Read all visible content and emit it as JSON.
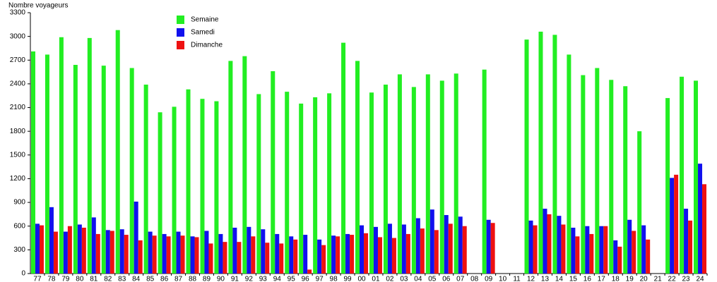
{
  "chart_data": {
    "type": "bar",
    "y_label": "Nombre voyageurs",
    "categories": [
      "77",
      "78",
      "79",
      "80",
      "81",
      "82",
      "83",
      "84",
      "85",
      "86",
      "87",
      "88",
      "89",
      "90",
      "91",
      "92",
      "93",
      "94",
      "95",
      "96",
      "97",
      "98",
      "99",
      "00",
      "01",
      "02",
      "03",
      "04",
      "05",
      "06",
      "07",
      "08",
      "09",
      "10",
      "11",
      "12",
      "13",
      "14",
      "15",
      "16",
      "17",
      "18",
      "19",
      "20",
      "21",
      "22",
      "23",
      "24"
    ],
    "series": [
      {
        "name": "Semaine",
        "color": "#22ee22",
        "values": [
          2810,
          2770,
          2990,
          2640,
          2980,
          2630,
          3080,
          2600,
          2390,
          2040,
          2110,
          2330,
          2210,
          2180,
          2690,
          2750,
          2270,
          2560,
          2300,
          2150,
          2230,
          2280,
          2920,
          2690,
          2290,
          2390,
          2520,
          2360,
          2520,
          2440,
          2530,
          null,
          2580,
          null,
          null,
          2960,
          3060,
          3020,
          2770,
          2510,
          2600,
          2450,
          2370,
          1800,
          null,
          2220,
          2490,
          2440
        ]
      },
      {
        "name": "Samedi",
        "color": "#1111ee",
        "values": [
          630,
          840,
          530,
          620,
          710,
          550,
          560,
          910,
          530,
          500,
          530,
          470,
          540,
          500,
          580,
          590,
          560,
          500,
          470,
          490,
          430,
          480,
          500,
          610,
          590,
          630,
          620,
          700,
          810,
          740,
          720,
          null,
          680,
          null,
          null,
          670,
          820,
          730,
          580,
          600,
          600,
          420,
          680,
          610,
          null,
          1210,
          820,
          1390
        ]
      },
      {
        "name": "Dimanche",
        "color": "#ee1111",
        "values": [
          610,
          530,
          600,
          580,
          500,
          540,
          490,
          420,
          480,
          470,
          480,
          460,
          380,
          400,
          400,
          470,
          390,
          380,
          430,
          50,
          360,
          470,
          490,
          510,
          460,
          450,
          500,
          570,
          550,
          630,
          600,
          null,
          640,
          null,
          null,
          610,
          750,
          620,
          470,
          500,
          600,
          340,
          540,
          430,
          null,
          1250,
          670,
          1130
        ]
      }
    ],
    "ylim": [
      0,
      3300
    ],
    "yticks": [
      0,
      300,
      600,
      900,
      1200,
      1500,
      1800,
      2100,
      2400,
      2700,
      3000,
      3300
    ],
    "grid": false
  }
}
